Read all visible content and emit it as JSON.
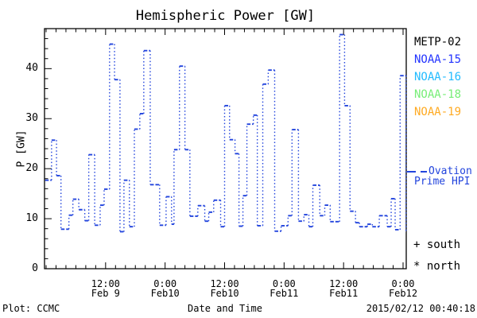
{
  "title": "Hemispheric Power [GW]",
  "axes": {
    "x_label": "Date and Time",
    "y_label": "P [GW]"
  },
  "footer": {
    "plot_credit": "Plot: CCMC",
    "timestamp": "2015/02/12 00:40:18"
  },
  "legend": {
    "satellites": [
      {
        "label": "METP-02",
        "color": "#000000"
      },
      {
        "label": "NOAA-15",
        "color": "#2233ff"
      },
      {
        "label": "NOAA-16",
        "color": "#22bbff"
      },
      {
        "label": "NOAA-18",
        "color": "#77ee77"
      },
      {
        "label": "NOAA-19",
        "color": "#ffaa22"
      }
    ],
    "ovation": {
      "line1": "Ovation",
      "line2": "Prime HPI",
      "color": "#2244dd"
    },
    "south_symbol": "+",
    "south_label": "south",
    "north_symbol": "*",
    "north_label": "north"
  },
  "chart_data": {
    "type": "line",
    "style": "step plot, horizontal dashed levels with dotted vertical connectors",
    "title": "Hemispheric Power [GW]",
    "xlabel": "Date and Time",
    "ylabel": "P [GW]",
    "line_color": "#2244dd",
    "ylim": [
      0,
      48
    ],
    "y_major_ticks": [
      0,
      10,
      20,
      30,
      40
    ],
    "y_minor_step": 2,
    "xlim_hours_from_feb9_0000": [
      -0.32,
      72.64
    ],
    "x_minor_step_hours": 2,
    "x_ticks": [
      {
        "t": 12,
        "time": "12:00",
        "date": "Feb 9"
      },
      {
        "t": 24,
        "time": "0:00",
        "date": "Feb10"
      },
      {
        "t": 36,
        "time": "12:00",
        "date": "Feb10"
      },
      {
        "t": 48,
        "time": "0:00",
        "date": "Feb11"
      },
      {
        "t": 60,
        "time": "12:00",
        "date": "Feb11"
      },
      {
        "t": 72,
        "time": "0:00",
        "date": "Feb12"
      }
    ],
    "points_t_gw": [
      [
        -0.2,
        17.7
      ],
      [
        1.1,
        25.7
      ],
      [
        2.1,
        18.6
      ],
      [
        3.0,
        7.9
      ],
      [
        4.6,
        10.7
      ],
      [
        5.4,
        13.9
      ],
      [
        6.6,
        11.8
      ],
      [
        7.8,
        9.6
      ],
      [
        8.6,
        22.8
      ],
      [
        9.8,
        8.7
      ],
      [
        10.9,
        12.7
      ],
      [
        11.7,
        15.9
      ],
      [
        12.8,
        44.9
      ],
      [
        13.8,
        37.8
      ],
      [
        14.9,
        7.4
      ],
      [
        15.7,
        17.7
      ],
      [
        16.8,
        8.4
      ],
      [
        17.8,
        27.9
      ],
      [
        18.9,
        31.0
      ],
      [
        19.7,
        43.6
      ],
      [
        21.0,
        16.8
      ],
      [
        22.9,
        8.7
      ],
      [
        24.2,
        14.4
      ],
      [
        25.3,
        8.9
      ],
      [
        25.8,
        23.8
      ],
      [
        26.9,
        40.5
      ],
      [
        28.0,
        23.8
      ],
      [
        29.0,
        10.5
      ],
      [
        30.6,
        12.6
      ],
      [
        32.0,
        9.5
      ],
      [
        32.8,
        11.3
      ],
      [
        33.8,
        13.7
      ],
      [
        35.2,
        8.4
      ],
      [
        36.0,
        32.6
      ],
      [
        37.0,
        25.8
      ],
      [
        38.1,
        23.0
      ],
      [
        38.9,
        8.5
      ],
      [
        39.7,
        14.6
      ],
      [
        40.5,
        28.9
      ],
      [
        41.8,
        30.7
      ],
      [
        42.6,
        8.6
      ],
      [
        43.7,
        36.9
      ],
      [
        44.8,
        39.7
      ],
      [
        46.1,
        7.5
      ],
      [
        47.4,
        8.6
      ],
      [
        48.8,
        10.6
      ],
      [
        49.6,
        27.8
      ],
      [
        50.9,
        9.5
      ],
      [
        52.0,
        10.8
      ],
      [
        53.0,
        8.4
      ],
      [
        53.8,
        16.7
      ],
      [
        55.2,
        10.6
      ],
      [
        56.2,
        12.7
      ],
      [
        57.3,
        9.4
      ],
      [
        59.2,
        46.8
      ],
      [
        60.2,
        32.6
      ],
      [
        61.3,
        11.5
      ],
      [
        62.4,
        9.2
      ],
      [
        63.2,
        8.4
      ],
      [
        64.8,
        8.9
      ],
      [
        65.8,
        8.4
      ],
      [
        67.2,
        10.6
      ],
      [
        68.8,
        8.4
      ],
      [
        69.6,
        14.0
      ],
      [
        70.4,
        7.8
      ],
      [
        71.4,
        38.6
      ],
      [
        72.6,
        7.5
      ]
    ]
  }
}
